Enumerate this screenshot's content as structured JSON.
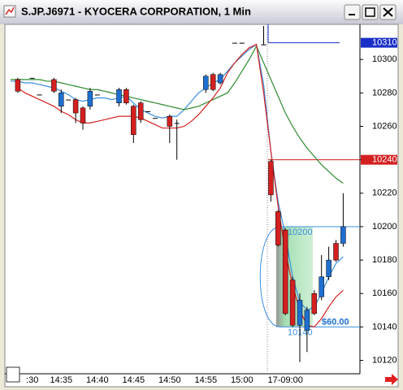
{
  "window": {
    "title": "S.JP.J6971 - KYOCERA CORPORATION, 1 Min"
  },
  "chart_data": {
    "type": "candlestick",
    "categories": [
      null,
      null,
      null,
      ":30",
      null,
      null,
      null,
      "14:35",
      null,
      null,
      null,
      null,
      "14:40",
      null,
      null,
      null,
      null,
      "14:45",
      null,
      null,
      null,
      null,
      "14:50",
      null,
      null,
      null,
      null,
      "14:55",
      null,
      null,
      null,
      null,
      "15:00",
      null,
      null,
      null,
      null,
      null,
      "17-09:00",
      null,
      null,
      null,
      null,
      null,
      null,
      null,
      null
    ],
    "open": [
      null,
      10288,
      null,
      10289,
      10279,
      null,
      10288,
      10272,
      10276,
      10276,
      10271,
      10272,
      10279,
      null,
      null,
      10274,
      10282,
      10272,
      10274,
      10269,
      10265,
      null,
      10266,
      10262,
      null,
      null,
      null,
      10282,
      10291,
      10286,
      null,
      10310,
      10310,
      null,
      null,
      10309,
      10239,
      10209,
      10198,
      10168,
      10141,
      10138,
      10160,
      10158,
      10170,
      10190,
      10190
    ],
    "high": [
      null,
      10289,
      null,
      10289,
      10279,
      null,
      10289,
      10282,
      10276,
      10277,
      10272,
      10283,
      10279,
      null,
      null,
      10283,
      10283,
      10273,
      10275,
      10269,
      10265,
      null,
      10267,
      10264,
      null,
      null,
      null,
      10291,
      10292,
      10292,
      null,
      10310,
      10310,
      null,
      null,
      10320,
      10240,
      10210,
      10199,
      10170,
      10160,
      10152,
      10162,
      10183,
      10188,
      10192,
      10220
    ],
    "low": [
      null,
      10280,
      null,
      10289,
      10279,
      null,
      10280,
      10268,
      10276,
      10262,
      10258,
      10270,
      10279,
      null,
      null,
      10272,
      10273,
      10250,
      10262,
      10269,
      10265,
      null,
      10250,
      10240,
      null,
      null,
      null,
      10280,
      10281,
      10285,
      null,
      10310,
      10310,
      null,
      null,
      10309,
      10215,
      10188,
      10147,
      10140,
      10119,
      10125,
      10147,
      10156,
      10168,
      10179,
      10188
    ],
    "close": [
      null,
      10281,
      null,
      10289,
      10279,
      null,
      10281,
      10280,
      10276,
      10268,
      10262,
      10281,
      10279,
      null,
      null,
      10282,
      10274,
      10255,
      10264,
      10269,
      10265,
      null,
      10260,
      10262,
      null,
      null,
      null,
      10290,
      10282,
      10291,
      null,
      10310,
      10310,
      null,
      null,
      10309,
      10219,
      10189,
      10148,
      10141,
      10156,
      10150,
      10148,
      10170,
      10180,
      10180,
      10200
    ],
    "up_color": "#1e6fd0",
    "down_color": "#d42020",
    "series": [
      {
        "color": "#3a8fe0",
        "values": [
          10287,
          10287,
          10286,
          10286,
          10285,
          10284,
          10283,
          10281,
          10279,
          10276,
          10275,
          10276,
          10277,
          10277,
          10276,
          10277,
          10278,
          10274,
          10270,
          10268,
          10266,
          10265,
          10266,
          10266,
          10270,
          10275,
          10280,
          10283,
          10286,
          10288,
          10293,
          10298,
          10302,
          10306,
          10309,
          10285,
          10245,
          10215,
          10195,
          10170,
          10155,
          10150,
          10152,
          10160,
          10170,
          10178,
          10182
        ]
      },
      {
        "color": "#2e8b2e",
        "values": [
          10288,
          10288,
          10288,
          10288,
          10288,
          10287,
          10287,
          10286,
          10285,
          10284,
          10283,
          10282,
          10282,
          10281,
          10280,
          10279,
          10278,
          10277,
          10276,
          10275,
          10274,
          10273,
          10272,
          10271,
          10270,
          10271,
          10272,
          10274,
          10276,
          10278,
          10280,
          10286,
          10293,
          10300,
          10308,
          10298,
          10288,
          10278,
          10268,
          10260,
          10253,
          10247,
          10242,
          10237,
          10233,
          10229,
          10226
        ]
      },
      {
        "color": "#d42020",
        "values": [
          null,
          10283,
          10280,
          10278,
          10276,
          10274,
          10272,
          10269,
          10267,
          10264,
          10262,
          10262,
          10263,
          10264,
          10265,
          10266,
          10266,
          10266,
          10265,
          10263,
          10261,
          10259,
          10259,
          10259,
          10260,
          10263,
          10267,
          10272,
          10277,
          10283,
          10292,
          10298,
          10303,
          10307,
          10309,
          10280,
          10245,
          10212,
          10185,
          10165,
          10150,
          10141,
          10140,
          10145,
          10152,
          10158,
          10162
        ]
      }
    ],
    "ylim": [
      10112,
      10321
    ],
    "yticks": [
      10120,
      10140,
      10160,
      10180,
      10200,
      10220,
      10240,
      10260,
      10280,
      10300
    ],
    "price_lines": [
      {
        "value": 10310,
        "color": "#1a2fc8",
        "tag": true
      },
      {
        "value": 10240,
        "color": "#d42020",
        "tag": true
      },
      {
        "value": 10200,
        "color": "#3a8fe0",
        "text": true
      },
      {
        "value": 10140,
        "color": "#3a8fe0",
        "text": true
      }
    ],
    "profit": {
      "value": 60,
      "label": "$60.00",
      "color": "#1e6fd0"
    }
  }
}
